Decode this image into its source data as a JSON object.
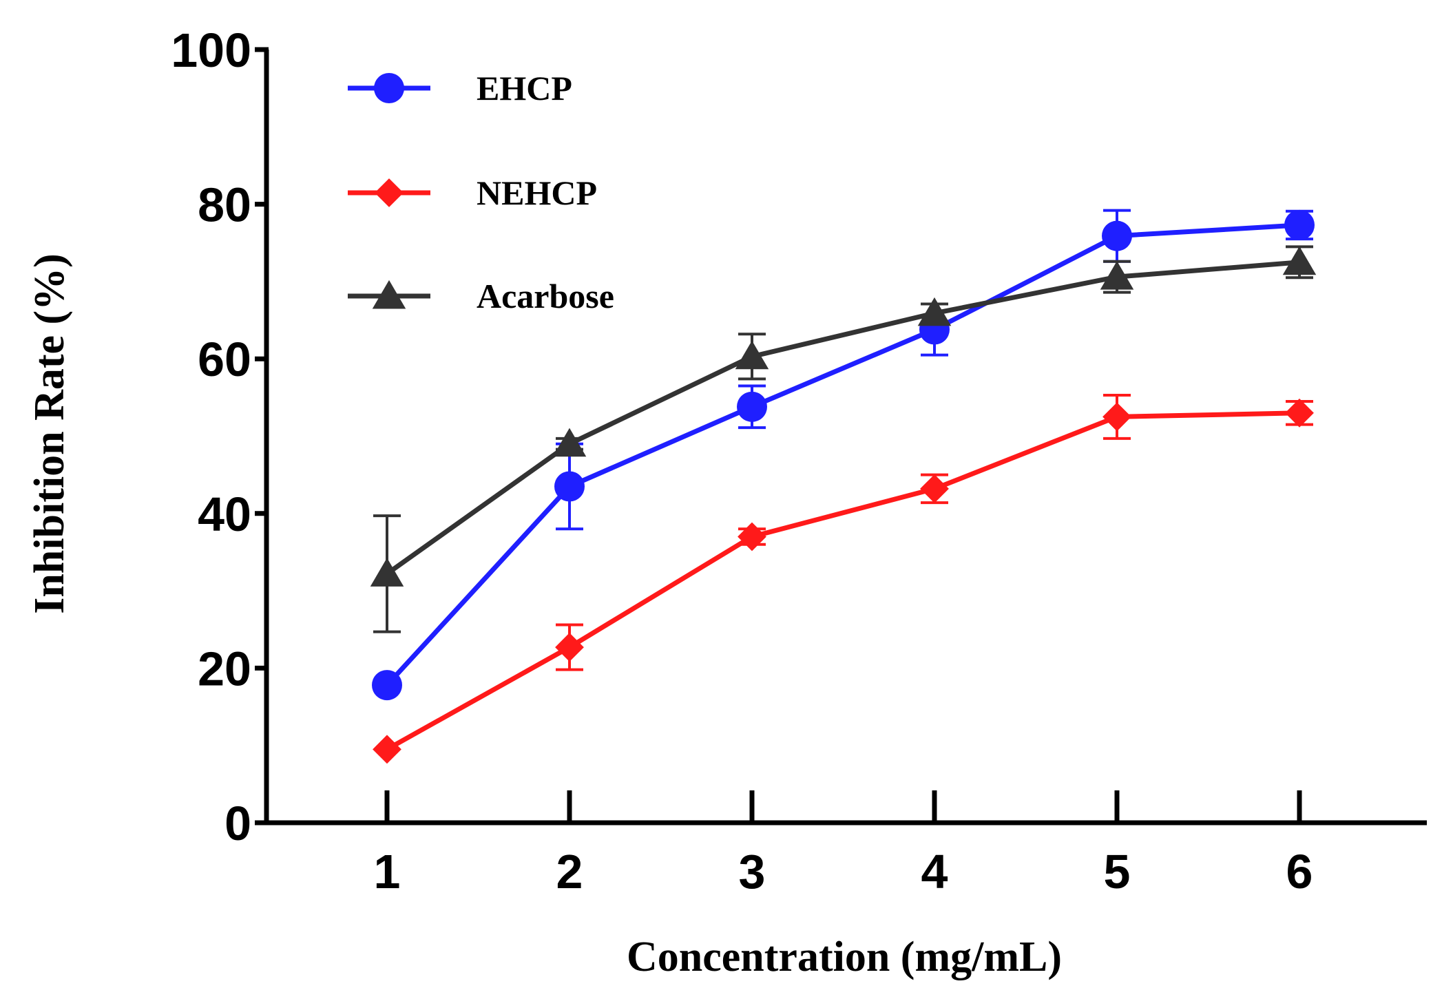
{
  "chart_data": {
    "type": "line",
    "title": "",
    "xlabel": "Concentration (mg/mL)",
    "ylabel": "Inhibition Rate (%)",
    "x": [
      1,
      2,
      3,
      4,
      5,
      6
    ],
    "xticks": [
      "1",
      "2",
      "3",
      "4",
      "5",
      "6"
    ],
    "yticks": [
      "0",
      "20",
      "40",
      "60",
      "80",
      "100"
    ],
    "ylim": [
      0,
      100
    ],
    "grid": false,
    "legend_position": "top-left",
    "series": [
      {
        "name": "EHCP",
        "color": "#1f1fff",
        "marker": "circle",
        "values": [
          17.8,
          43.5,
          53.8,
          63.8,
          75.9,
          77.3
        ],
        "errors": [
          0.0,
          5.5,
          2.7,
          3.3,
          3.3,
          1.8
        ]
      },
      {
        "name": "NEHCP",
        "color": "#ff1a1a",
        "marker": "diamond",
        "values": [
          9.5,
          22.7,
          37.0,
          43.2,
          52.5,
          53.0
        ],
        "errors": [
          0.0,
          2.9,
          1.0,
          1.8,
          2.8,
          1.5
        ]
      },
      {
        "name": "Acarbose",
        "color": "#333333",
        "marker": "triangle",
        "values": [
          32.2,
          49.0,
          60.3,
          65.9,
          70.6,
          72.5
        ],
        "errors": [
          7.5,
          0.7,
          2.9,
          1.2,
          2.0,
          2.0
        ]
      }
    ]
  }
}
